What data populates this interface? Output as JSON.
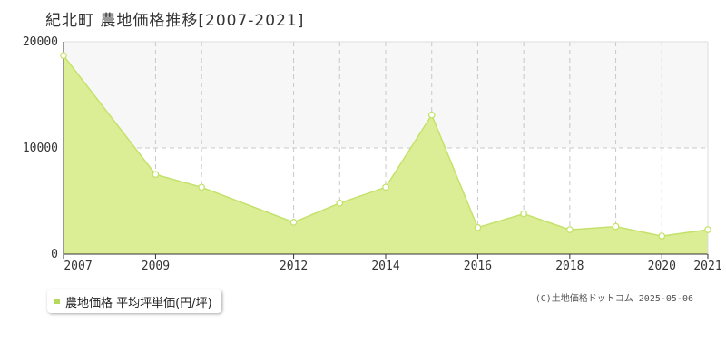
{
  "page": {
    "title": "紀北町 農地価格推移[2007-2021]",
    "credit": "(C)土地価格ドットコム 2025-05-06"
  },
  "legend": {
    "label": "農地価格 平均坪単価(円/坪)"
  },
  "colors": {
    "area_fill": "#dbed95",
    "line": "#c4e26b",
    "marker_fill": "#ffffff",
    "grid": "#c8c8c8",
    "band": "#f7f7f7",
    "axis": "#333333"
  },
  "chart_data": {
    "type": "area",
    "title": "紀北町 農地価格推移[2007-2021]",
    "xlabel": "",
    "ylabel": "",
    "xlim": [
      2007,
      2021
    ],
    "ylim": [
      0,
      20000
    ],
    "x_ticks": [
      2007,
      2009,
      2012,
      2014,
      2016,
      2018,
      2020,
      2021
    ],
    "y_ticks": [
      0,
      10000,
      20000
    ],
    "grid": true,
    "legend_position": "bottom-left",
    "series": [
      {
        "name": "農地価格 平均坪単価(円/坪)",
        "x": [
          2007,
          2009,
          2010,
          2012,
          2013,
          2014,
          2015,
          2016,
          2017,
          2018,
          2019,
          2020,
          2021
        ],
        "values": [
          18700,
          7500,
          6300,
          3000,
          4800,
          6300,
          13100,
          2500,
          3800,
          2300,
          2600,
          1700,
          2300
        ]
      }
    ]
  }
}
